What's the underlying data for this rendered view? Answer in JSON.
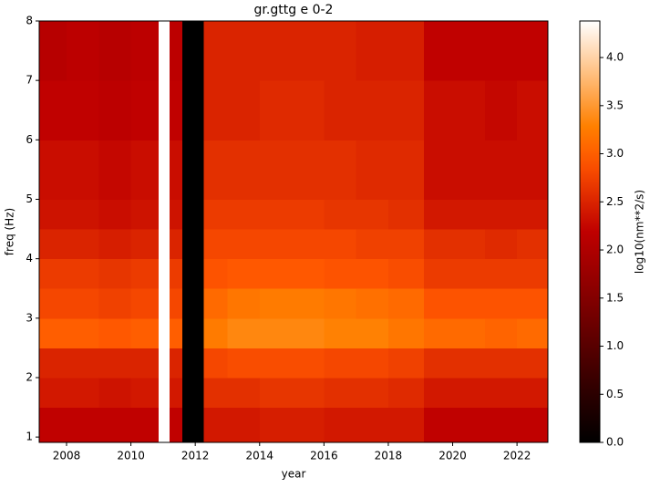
{
  "chart_data": {
    "type": "heatmap",
    "title": "gr.gttg e 0-2",
    "x_label": "year",
    "y_label": "freq (Hz)",
    "colorbar_label": "log10(nm**2/s)",
    "colormap": "gist_heat",
    "x": [
      2007.15,
      2008,
      2009,
      2010,
      2010.86,
      2011.2,
      2011.6,
      2012.27,
      2013,
      2014,
      2015,
      2016,
      2017,
      2018,
      2019.1,
      2020,
      2021,
      2022,
      2022.96
    ],
    "y": [
      0.91,
      1.5,
      2,
      2.5,
      3,
      3.5,
      4,
      4.5,
      5,
      6,
      7,
      8
    ],
    "values": [
      [
        2.2,
        2.2,
        2.2,
        2.2,
        4.38,
        2.2,
        0,
        2.4,
        2.4,
        2.45,
        2.45,
        2.4,
        2.4,
        2.4,
        2.2,
        2.2,
        2.2,
        2.2
      ],
      [
        2.4,
        2.4,
        2.35,
        2.4,
        4.38,
        2.4,
        0,
        2.6,
        2.6,
        2.65,
        2.65,
        2.6,
        2.6,
        2.55,
        2.4,
        2.4,
        2.4,
        2.4
      ],
      [
        2.5,
        2.5,
        2.5,
        2.5,
        4.38,
        2.5,
        0,
        2.8,
        2.85,
        2.85,
        2.85,
        2.8,
        2.8,
        2.75,
        2.6,
        2.6,
        2.6,
        2.6
      ],
      [
        3.0,
        3.0,
        2.95,
        3.0,
        4.38,
        3.0,
        0,
        3.25,
        3.35,
        3.35,
        3.35,
        3.3,
        3.3,
        3.2,
        3.1,
        3.1,
        3.05,
        3.1
      ],
      [
        2.8,
        2.8,
        2.75,
        2.8,
        4.38,
        2.8,
        0,
        3.1,
        3.2,
        3.25,
        3.25,
        3.2,
        3.15,
        3.1,
        2.9,
        2.9,
        2.9,
        2.9
      ],
      [
        2.7,
        2.7,
        2.65,
        2.7,
        4.38,
        2.7,
        0,
        2.9,
        2.95,
        2.95,
        2.95,
        2.9,
        2.9,
        2.85,
        2.7,
        2.7,
        2.7,
        2.7
      ],
      [
        2.5,
        2.5,
        2.45,
        2.5,
        4.38,
        2.5,
        0,
        2.8,
        2.8,
        2.8,
        2.8,
        2.8,
        2.75,
        2.75,
        2.6,
        2.6,
        2.55,
        2.6
      ],
      [
        2.35,
        2.35,
        2.3,
        2.35,
        4.38,
        2.35,
        0,
        2.7,
        2.7,
        2.7,
        2.7,
        2.65,
        2.65,
        2.6,
        2.4,
        2.4,
        2.4,
        2.4
      ],
      [
        2.3,
        2.3,
        2.25,
        2.3,
        4.38,
        2.3,
        0,
        2.6,
        2.6,
        2.6,
        2.6,
        2.6,
        2.55,
        2.55,
        2.3,
        2.3,
        2.3,
        2.3
      ],
      [
        2.2,
        2.2,
        2.15,
        2.2,
        4.38,
        2.2,
        0,
        2.5,
        2.5,
        2.55,
        2.55,
        2.5,
        2.5,
        2.5,
        2.3,
        2.3,
        2.25,
        2.3
      ],
      [
        2.1,
        2.15,
        2.1,
        2.15,
        4.38,
        2.15,
        0,
        2.5,
        2.5,
        2.5,
        2.5,
        2.5,
        2.45,
        2.45,
        2.2,
        2.2,
        2.2,
        2.2
      ]
    ],
    "xlim": [
      2007.15,
      2022.96
    ],
    "ylim": [
      0.91,
      8
    ],
    "clim": [
      0,
      4.38
    ],
    "xticks": [
      2008,
      2010,
      2012,
      2014,
      2016,
      2018,
      2020,
      2022
    ],
    "yticks": [
      1,
      2,
      3,
      4,
      5,
      6,
      7,
      8
    ],
    "cticks": [
      {
        "value": 0,
        "label": "0.0"
      },
      0.5,
      {
        "value": 1,
        "label": "1.0"
      },
      1.5,
      {
        "value": 2,
        "label": "2.0"
      },
      2.5,
      {
        "value": 3,
        "label": "3.0"
      },
      3.5,
      {
        "value": 4,
        "label": "4.0"
      }
    ]
  }
}
